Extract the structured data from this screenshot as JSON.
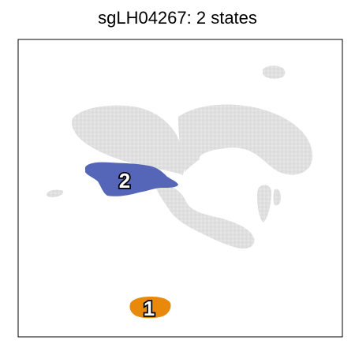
{
  "title": "sgLH04267: 2 states",
  "chart_data": {
    "type": "scatter",
    "title": "sgLH04267: 2 states",
    "xlabel": "",
    "ylabel": "",
    "grid": false,
    "colors": {
      "background_points": "#e2e2e2",
      "state_1": "#e8890c",
      "state_2": "#5566b8"
    },
    "series": [
      {
        "label": "1",
        "color": "#e8890c"
      },
      {
        "label": "2",
        "color": "#5566b8"
      }
    ]
  }
}
